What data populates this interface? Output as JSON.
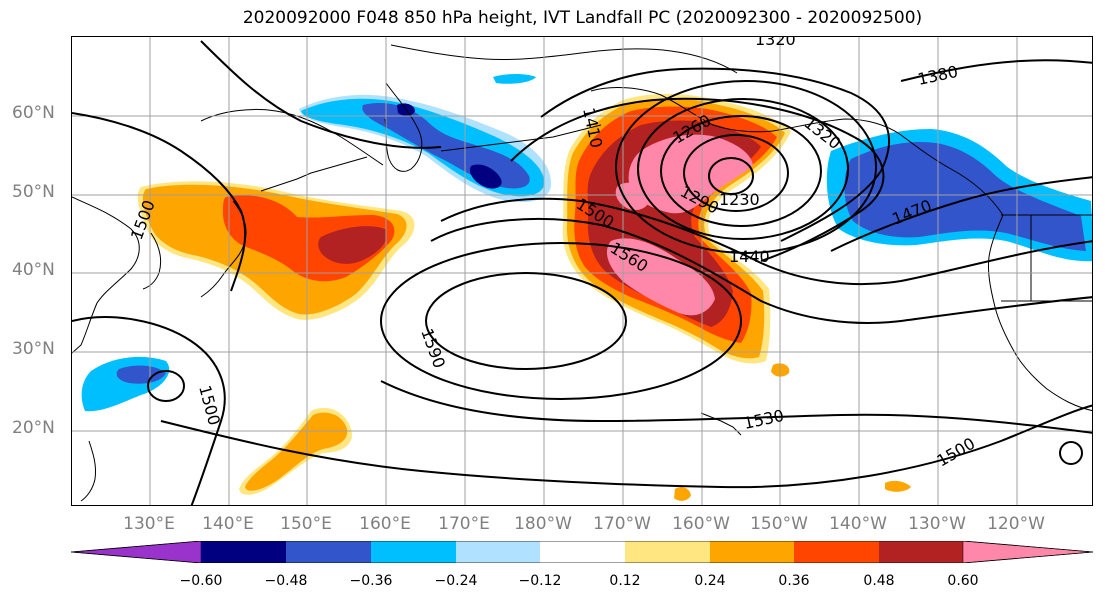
{
  "title": "2020092000 F048 850 hPa height, IVT Landfall PC (2020092300 - 2020092500)",
  "lat_labels": [
    "60°N",
    "50°N",
    "40°N",
    "30°N",
    "20°N"
  ],
  "lon_labels": [
    "130°E",
    "140°E",
    "150°E",
    "160°E",
    "170°E",
    "180°W",
    "170°W",
    "160°W",
    "150°W",
    "140°W",
    "130°W",
    "120°W"
  ],
  "contour_labels": [
    "1320",
    "1380",
    "1410",
    "1260",
    "1320",
    "1230",
    "1290",
    "1500",
    "1470",
    "1440",
    "1560",
    "1590",
    "1500",
    "1530",
    "1500",
    "1500"
  ],
  "colorbar": {
    "tick_labels": [
      "−0.60",
      "−0.48",
      "−0.36",
      "−0.24",
      "−0.12",
      "0.12",
      "0.24",
      "0.36",
      "0.48",
      "0.60"
    ],
    "colors": [
      "#9933cc",
      "#000080",
      "#3355cc",
      "#00bfff",
      "#b0e2ff",
      "#ffffff",
      "#ffe680",
      "#ffa500",
      "#ff4500",
      "#b22222",
      "#ff88aa"
    ]
  },
  "colors": {
    "contour": "#000000",
    "coastline": "#000000",
    "gridline": "#a0a0a0",
    "axis_label": "#808080"
  }
}
